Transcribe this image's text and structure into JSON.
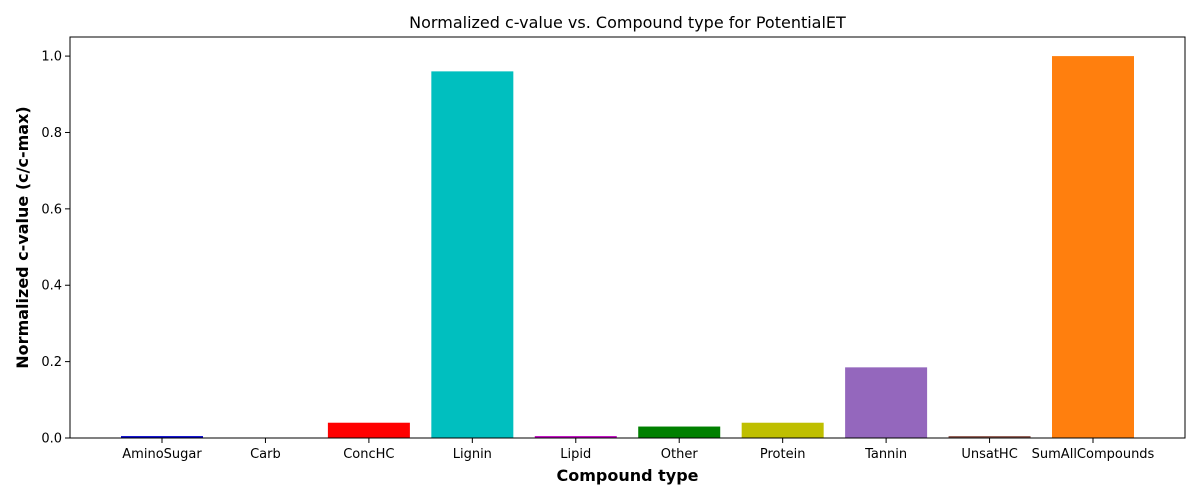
{
  "chart_data": {
    "type": "bar",
    "title": "Normalized c-value vs. Compound type for PotentialET",
    "xlabel": "Compound type",
    "ylabel": "Normalized c-value (c/c-max)",
    "ylim": [
      0,
      1.05
    ],
    "yticks": [
      "0.0",
      "0.2",
      "0.4",
      "0.6",
      "0.8",
      "1.0"
    ],
    "ytick_values": [
      0,
      0.2,
      0.4,
      0.6,
      0.8,
      1.0
    ],
    "grid": false,
    "categories": [
      "AminoSugar",
      "Carb",
      "ConcHC",
      "Lignin",
      "Lipid",
      "Other",
      "Protein",
      "Tannin",
      "UnsatHC",
      "SumAllCompounds"
    ],
    "values": [
      0.005,
      0.0,
      0.04,
      0.96,
      0.005,
      0.03,
      0.04,
      0.185,
      0.005,
      1.0
    ],
    "colors": [
      "#0000cc",
      "#00aa00",
      "#ff0000",
      "#00bfbf",
      "#bf00bf",
      "#008000",
      "#bfbf00",
      "#9467bd",
      "#8c564b",
      "#ff7f0e"
    ]
  }
}
